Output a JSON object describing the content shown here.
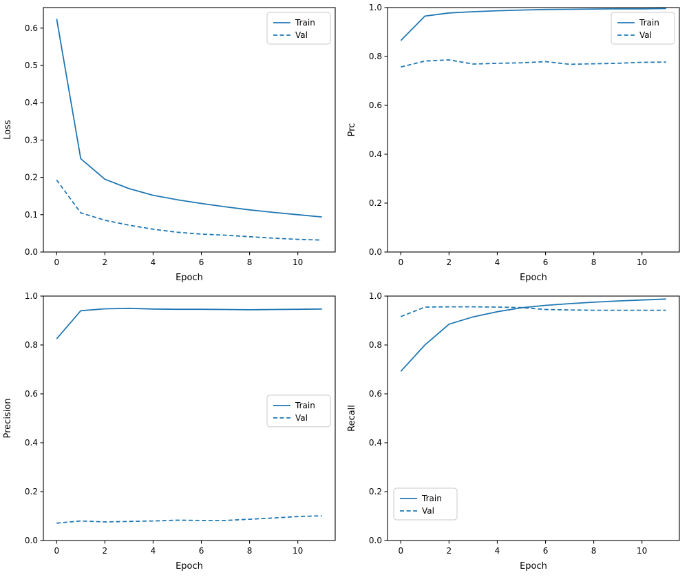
{
  "figure": {
    "background": "#ffffff",
    "accent_color": "#1f77b4",
    "axis_color": "#000000",
    "legend_border_color": "#c8c8c8"
  },
  "chart_data": [
    {
      "type": "line",
      "title": "",
      "xlabel": "Epoch",
      "ylabel": "Loss",
      "x": [
        0,
        1,
        2,
        3,
        4,
        5,
        6,
        7,
        8,
        9,
        10,
        11
      ],
      "series": [
        {
          "name": "Train",
          "line_style": "solid",
          "values": [
            0.625,
            0.25,
            0.195,
            0.17,
            0.152,
            0.14,
            0.13,
            0.121,
            0.113,
            0.106,
            0.1,
            0.094
          ]
        },
        {
          "name": "Val",
          "line_style": "dashed",
          "values": [
            0.193,
            0.105,
            0.085,
            0.072,
            0.061,
            0.053,
            0.048,
            0.045,
            0.041,
            0.037,
            0.034,
            0.032
          ]
        }
      ],
      "xlim": [
        -0.55,
        11.55
      ],
      "ylim": [
        0,
        0.655
      ],
      "xticks": [
        0,
        2,
        4,
        6,
        8,
        10
      ],
      "yticks": [
        0.0,
        0.1,
        0.2,
        0.3,
        0.4,
        0.5,
        0.6
      ],
      "grid": false,
      "legend_pos": "upper-right"
    },
    {
      "type": "line",
      "title": "",
      "xlabel": "Epoch",
      "ylabel": "Prc",
      "x": [
        0,
        1,
        2,
        3,
        4,
        5,
        6,
        7,
        8,
        9,
        10,
        11
      ],
      "series": [
        {
          "name": "Train",
          "line_style": "solid",
          "values": [
            0.865,
            0.965,
            0.978,
            0.983,
            0.987,
            0.99,
            0.992,
            0.993,
            0.994,
            0.995,
            0.995,
            0.996
          ]
        },
        {
          "name": "Val",
          "line_style": "dashed",
          "values": [
            0.757,
            0.781,
            0.786,
            0.769,
            0.772,
            0.774,
            0.779,
            0.768,
            0.77,
            0.772,
            0.776,
            0.777
          ]
        }
      ],
      "xlim": [
        -0.55,
        11.55
      ],
      "ylim": [
        0,
        1.0
      ],
      "xticks": [
        0,
        2,
        4,
        6,
        8,
        10
      ],
      "yticks": [
        0.0,
        0.2,
        0.4,
        0.6,
        0.8,
        1.0
      ],
      "grid": false,
      "legend_pos": "upper-right"
    },
    {
      "type": "line",
      "title": "",
      "xlabel": "Epoch",
      "ylabel": "Precision",
      "x": [
        0,
        1,
        2,
        3,
        4,
        5,
        6,
        7,
        8,
        9,
        10,
        11
      ],
      "series": [
        {
          "name": "Train",
          "line_style": "solid",
          "values": [
            0.825,
            0.94,
            0.948,
            0.95,
            0.947,
            0.946,
            0.946,
            0.945,
            0.944,
            0.945,
            0.946,
            0.947
          ]
        },
        {
          "name": "Val",
          "line_style": "dashed",
          "values": [
            0.071,
            0.08,
            0.076,
            0.078,
            0.08,
            0.083,
            0.082,
            0.082,
            0.087,
            0.092,
            0.098,
            0.101
          ]
        }
      ],
      "xlim": [
        -0.55,
        11.55
      ],
      "ylim": [
        0,
        1.0
      ],
      "xticks": [
        0,
        2,
        4,
        6,
        8,
        10
      ],
      "yticks": [
        0.0,
        0.2,
        0.4,
        0.6,
        0.8,
        1.0
      ],
      "grid": false,
      "legend_pos": "center-right"
    },
    {
      "type": "line",
      "title": "",
      "xlabel": "Epoch",
      "ylabel": "Recall",
      "x": [
        0,
        1,
        2,
        3,
        4,
        5,
        6,
        7,
        8,
        9,
        10,
        11
      ],
      "series": [
        {
          "name": "Train",
          "line_style": "solid",
          "values": [
            0.692,
            0.8,
            0.885,
            0.915,
            0.936,
            0.952,
            0.962,
            0.969,
            0.975,
            0.98,
            0.984,
            0.988
          ]
        },
        {
          "name": "Val",
          "line_style": "dashed",
          "values": [
            0.916,
            0.955,
            0.956,
            0.956,
            0.955,
            0.953,
            0.945,
            0.943,
            0.942,
            0.942,
            0.942,
            0.942
          ]
        }
      ],
      "xlim": [
        -0.55,
        11.55
      ],
      "ylim": [
        0,
        1.0
      ],
      "xticks": [
        0,
        2,
        4,
        6,
        8,
        10
      ],
      "yticks": [
        0.0,
        0.2,
        0.4,
        0.6,
        0.8,
        1.0
      ],
      "grid": false,
      "legend_pos": "lower-left"
    }
  ]
}
